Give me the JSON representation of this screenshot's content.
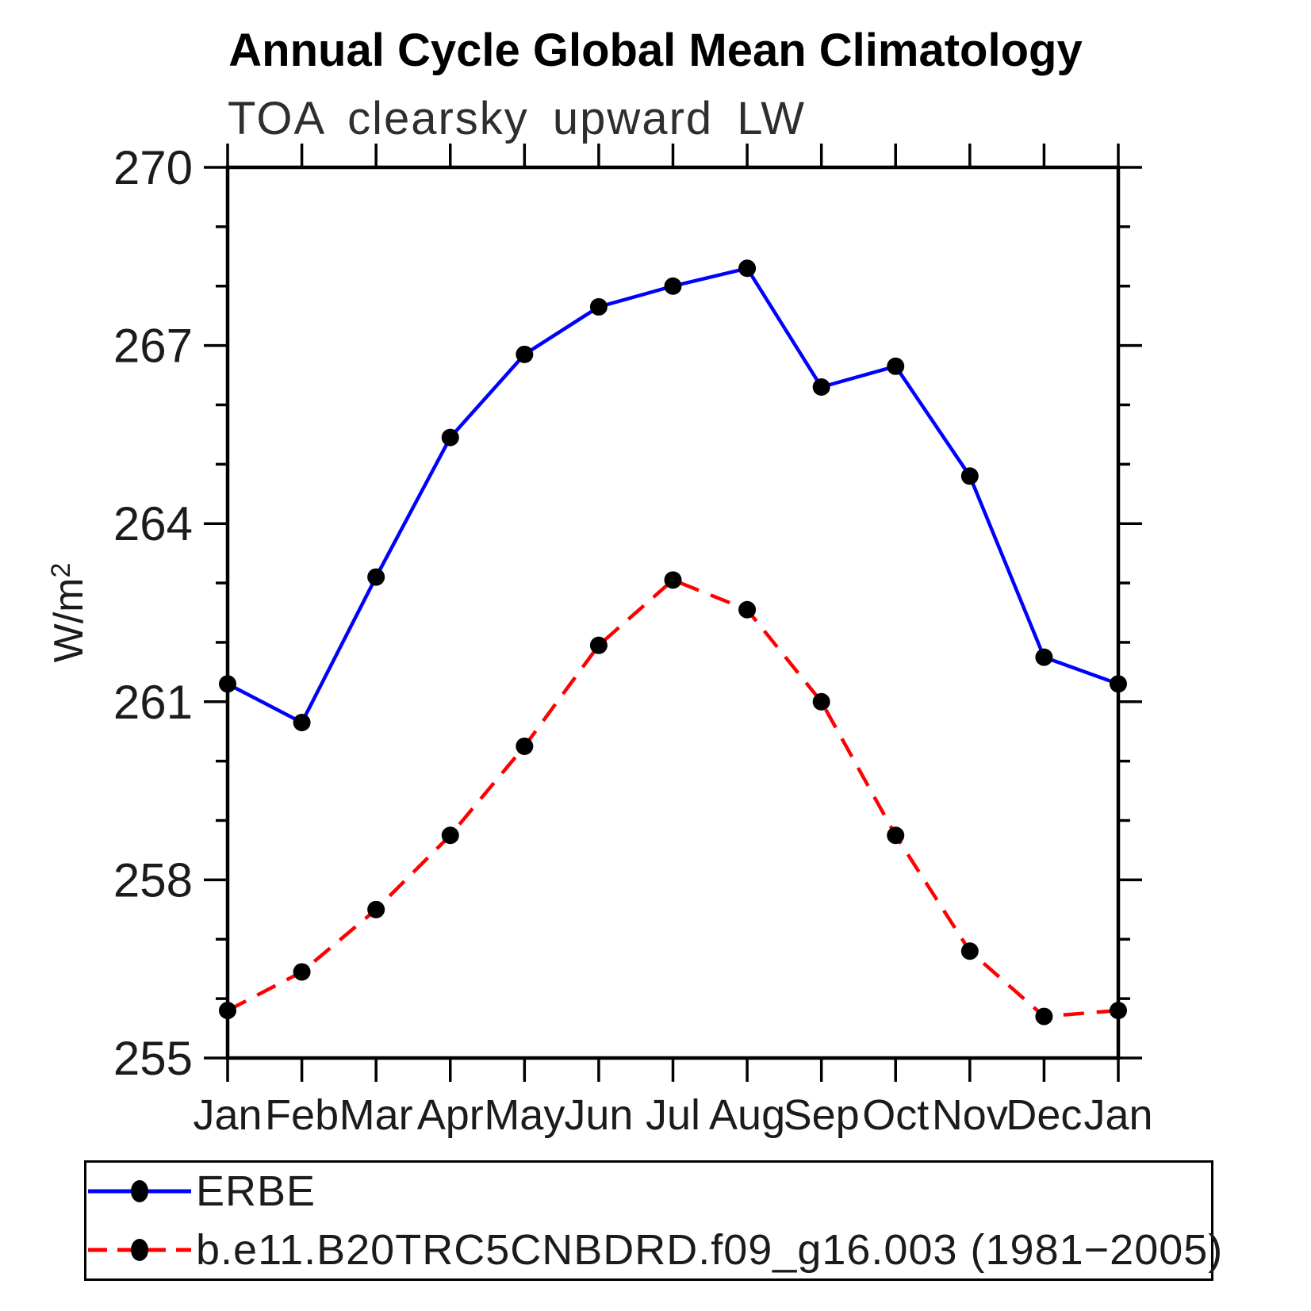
{
  "page": {
    "title": "Annual Cycle Global Mean Climatology",
    "subtitle": "TOA clearsky upward LW"
  },
  "chart_data": {
    "type": "line",
    "title": "Annual Cycle Global Mean Climatology",
    "subtitle": "TOA clearsky upward LW",
    "xlabel": "",
    "ylabel": "W/m²",
    "ylim": [
      255,
      270
    ],
    "y_major_ticks": [
      255,
      258,
      261,
      264,
      267,
      270
    ],
    "y_minor_step": 1,
    "grid": false,
    "legend_position": "bottom",
    "categories": [
      "Jan",
      "Feb",
      "Mar",
      "Apr",
      "May",
      "Jun",
      "Jul",
      "Aug",
      "Sep",
      "Oct",
      "Nov",
      "Dec",
      "Jan"
    ],
    "series": [
      {
        "name": "ERBE",
        "color": "#0000ff",
        "style": "solid",
        "marker": "circle",
        "marker_color": "#000000",
        "values": [
          261.3,
          260.65,
          263.1,
          265.45,
          266.85,
          267.65,
          268.0,
          268.3,
          266.3,
          266.65,
          264.8,
          261.75,
          261.3
        ]
      },
      {
        "name": "b.e11.B20TRC5CNBDRD.f09_g16.003 (1981−2005)",
        "color": "#ff0000",
        "style": "dashed",
        "marker": "circle",
        "marker_color": "#000000",
        "values": [
          255.8,
          256.45,
          257.5,
          258.75,
          260.25,
          261.95,
          263.05,
          262.55,
          261.0,
          258.75,
          256.8,
          255.7,
          255.8
        ]
      }
    ]
  }
}
